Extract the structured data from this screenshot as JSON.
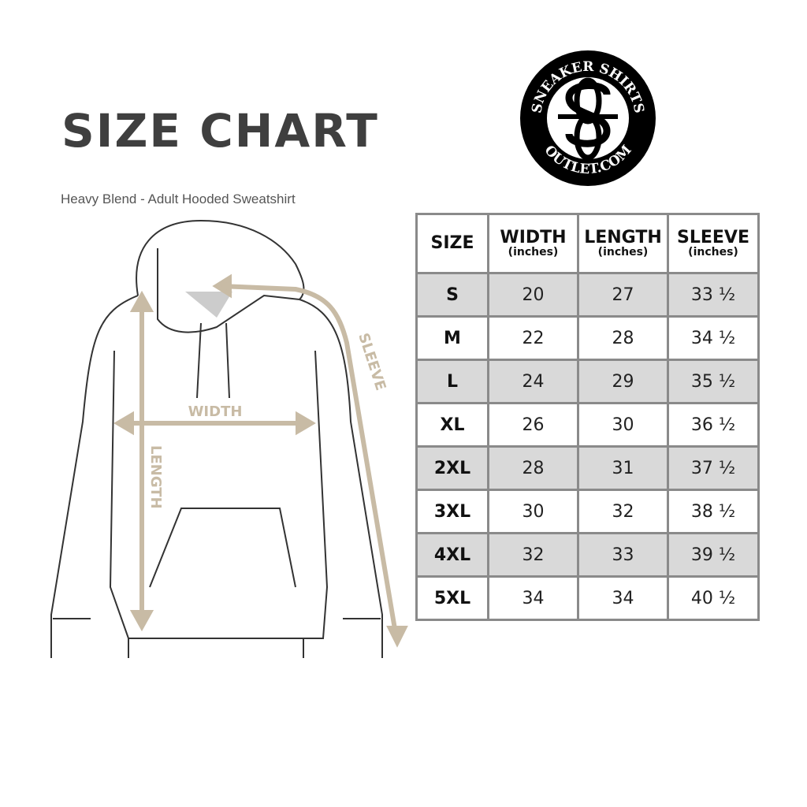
{
  "title": "SIZE CHART",
  "subtitle": "Heavy Blend - Adult Hooded Sweatshirt",
  "logo": {
    "top_text": "SNEAKER SHIRTS",
    "bottom_text": "OUTLET.COM",
    "monogram": "SS"
  },
  "diagram_labels": {
    "width": "WIDTH",
    "length": "LENGTH",
    "sleeve": "SLEEVE"
  },
  "colors": {
    "measure": "#c8bba5",
    "shade": "#d9d9d9",
    "border": "#8a8a8a"
  },
  "table": {
    "headers": [
      {
        "label": "SIZE",
        "unit": ""
      },
      {
        "label": "WIDTH",
        "unit": "(inches)"
      },
      {
        "label": "LENGTH",
        "unit": "(inches)"
      },
      {
        "label": "SLEEVE",
        "unit": "(inches)"
      }
    ],
    "rows": [
      [
        "S",
        "20",
        "27",
        "33 ½"
      ],
      [
        "M",
        "22",
        "28",
        "34 ½"
      ],
      [
        "L",
        "24",
        "29",
        "35 ½"
      ],
      [
        "XL",
        "26",
        "30",
        "36 ½"
      ],
      [
        "2XL",
        "28",
        "31",
        "37 ½"
      ],
      [
        "3XL",
        "30",
        "32",
        "38 ½"
      ],
      [
        "4XL",
        "32",
        "33",
        "39 ½"
      ],
      [
        "5XL",
        "34",
        "34",
        "40 ½"
      ]
    ]
  }
}
